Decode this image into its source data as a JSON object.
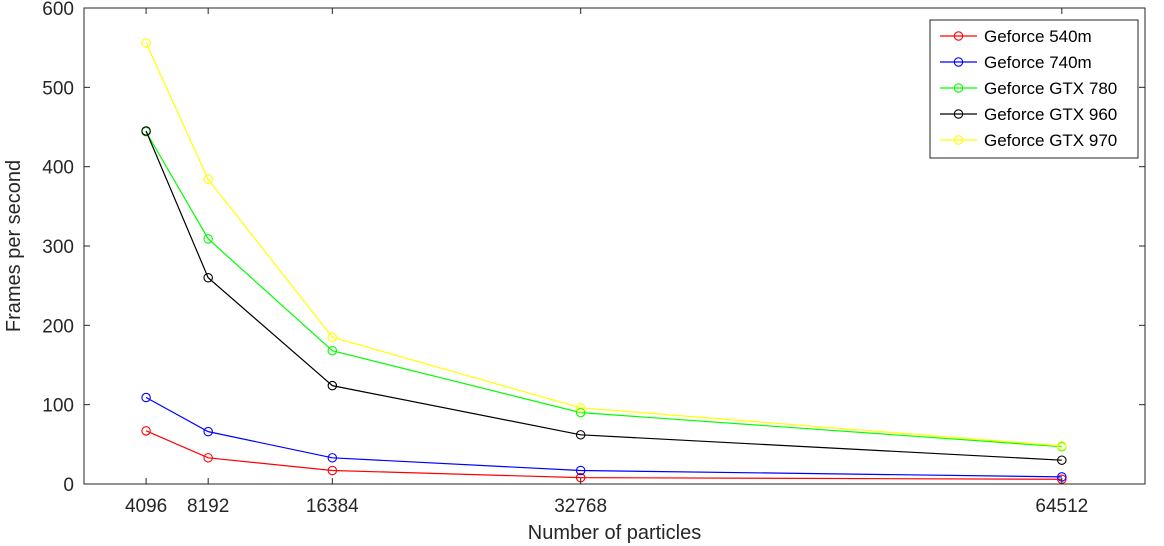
{
  "chart_data": {
    "type": "line",
    "xlabel": "Number of particles",
    "ylabel": "Frames per second",
    "x": [
      4096,
      8192,
      16384,
      32768,
      64512
    ],
    "xticks": [
      4096,
      8192,
      16384,
      32768,
      64512
    ],
    "xlim": [
      0,
      70000
    ],
    "ylim": [
      0,
      600
    ],
    "yticks": [
      0,
      100,
      200,
      300,
      400,
      500,
      600
    ],
    "grid": false,
    "legend_position": "top-right",
    "marker": "circle",
    "series": [
      {
        "name": "Geforce 540m",
        "color": "#ff0000",
        "values": [
          67,
          33,
          17,
          8,
          6
        ]
      },
      {
        "name": "Geforce 740m",
        "color": "#0000ff",
        "values": [
          109,
          66,
          33,
          17,
          9
        ]
      },
      {
        "name": "Geforce GTX 780",
        "color": "#00ff00",
        "values": [
          444,
          309,
          168,
          90,
          47
        ]
      },
      {
        "name": "Geforce GTX 960",
        "color": "#000000",
        "values": [
          445,
          260,
          124,
          62,
          30
        ]
      },
      {
        "name": "Geforce GTX 970",
        "color": "#ffff00",
        "values": [
          556,
          384,
          185,
          96,
          48
        ]
      }
    ]
  }
}
